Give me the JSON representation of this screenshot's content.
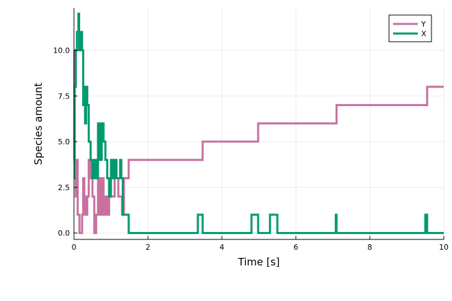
{
  "chart_data": {
    "type": "line",
    "step": true,
    "xlabel": "Time [s]",
    "ylabel": "Species amount",
    "xlim": [
      0,
      10
    ],
    "ylim": [
      -0.35,
      12.3
    ],
    "xticks": [
      0,
      2,
      4,
      6,
      8,
      10
    ],
    "xtick_labels": [
      "0",
      "2",
      "4",
      "6",
      "8",
      "10"
    ],
    "yticks": [
      0,
      2.5,
      5,
      7.5,
      10
    ],
    "ytick_labels": [
      "0.0",
      "2.5",
      "5.0",
      "7.5",
      "10.0"
    ],
    "grid": true,
    "legend_position": "top-right",
    "series": [
      {
        "name": "Y",
        "color": "#c8709f",
        "points": [
          [
            0,
            10
          ],
          [
            0.01,
            4
          ],
          [
            0.02,
            3
          ],
          [
            0.05,
            2
          ],
          [
            0.08,
            4
          ],
          [
            0.1,
            1
          ],
          [
            0.15,
            0
          ],
          [
            0.22,
            1
          ],
          [
            0.25,
            3
          ],
          [
            0.28,
            1
          ],
          [
            0.3,
            2
          ],
          [
            0.33,
            1
          ],
          [
            0.36,
            2
          ],
          [
            0.4,
            4
          ],
          [
            0.45,
            3
          ],
          [
            0.5,
            2
          ],
          [
            0.55,
            0
          ],
          [
            0.6,
            1
          ],
          [
            0.65,
            3
          ],
          [
            0.7,
            1
          ],
          [
            0.75,
            3
          ],
          [
            0.8,
            1
          ],
          [
            0.85,
            2
          ],
          [
            0.9,
            1
          ],
          [
            0.95,
            3
          ],
          [
            1.0,
            2
          ],
          [
            1.1,
            3
          ],
          [
            1.2,
            2
          ],
          [
            1.3,
            1
          ],
          [
            1.35,
            3
          ],
          [
            1.48,
            4
          ],
          [
            3.48,
            5
          ],
          [
            4.98,
            6
          ],
          [
            7.1,
            7
          ],
          [
            9.55,
            8
          ],
          [
            10,
            8
          ]
        ]
      },
      {
        "name": "X",
        "color": "#009a6e",
        "points": [
          [
            0,
            3
          ],
          [
            0.02,
            8
          ],
          [
            0.05,
            10
          ],
          [
            0.08,
            11
          ],
          [
            0.12,
            12
          ],
          [
            0.14,
            10
          ],
          [
            0.18,
            11
          ],
          [
            0.22,
            10
          ],
          [
            0.25,
            7
          ],
          [
            0.28,
            8
          ],
          [
            0.3,
            6
          ],
          [
            0.33,
            8
          ],
          [
            0.36,
            7
          ],
          [
            0.4,
            5
          ],
          [
            0.45,
            4
          ],
          [
            0.5,
            3
          ],
          [
            0.55,
            4
          ],
          [
            0.6,
            3
          ],
          [
            0.65,
            6
          ],
          [
            0.7,
            4
          ],
          [
            0.75,
            6
          ],
          [
            0.8,
            5
          ],
          [
            0.85,
            4
          ],
          [
            0.9,
            3
          ],
          [
            0.95,
            2
          ],
          [
            1.0,
            4
          ],
          [
            1.05,
            3
          ],
          [
            1.1,
            4
          ],
          [
            1.15,
            3
          ],
          [
            1.25,
            4
          ],
          [
            1.28,
            3
          ],
          [
            1.32,
            1
          ],
          [
            1.48,
            0
          ],
          [
            3.35,
            1
          ],
          [
            3.48,
            0
          ],
          [
            4.8,
            1
          ],
          [
            4.98,
            0
          ],
          [
            5.3,
            1
          ],
          [
            5.5,
            0
          ],
          [
            7.08,
            1
          ],
          [
            7.1,
            0
          ],
          [
            9.5,
            1
          ],
          [
            9.55,
            0
          ],
          [
            10,
            0
          ]
        ]
      }
    ]
  }
}
